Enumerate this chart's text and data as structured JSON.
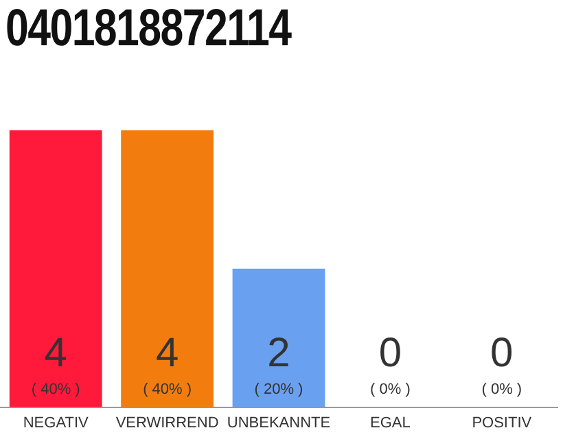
{
  "chart_data": {
    "type": "bar",
    "title": "0401818872114",
    "categories": [
      "NEGATIV",
      "VERWIRREND",
      "UNBEKANNTE",
      "EGAL",
      "POSITIV"
    ],
    "values": [
      4,
      4,
      2,
      0,
      0
    ],
    "colors": [
      "#ff1a3c",
      "#f27d0e",
      "#6aa0f0",
      "#9e9e9e",
      "#9e9e9e"
    ],
    "value_labels": [
      "4\n( 40% )",
      "4\n( 40% )",
      "2\n( 20% )",
      "0\n( 0% )",
      "0\n( 0% )"
    ],
    "ylim": [
      0,
      4
    ],
    "tick_labels": "x",
    "grid": false,
    "legend": false
  }
}
